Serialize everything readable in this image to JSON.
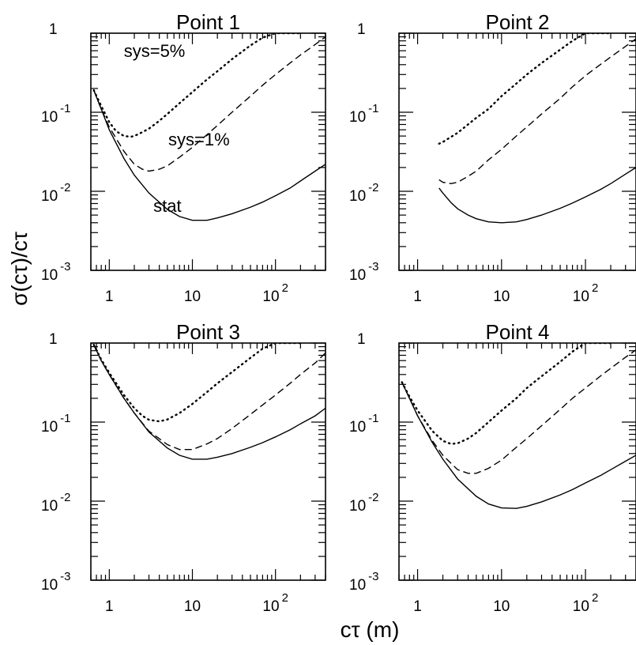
{
  "figure": {
    "ylabel": "σ(cτ)/cτ",
    "xlabel": "cτ (m)"
  },
  "axis_ticks": {
    "x_major": [
      {
        "value": 1,
        "base": "1",
        "exp": ""
      },
      {
        "value": 10,
        "base": "10",
        "exp": ""
      },
      {
        "value": 100,
        "base": "10",
        "exp": "2"
      }
    ],
    "y_major": [
      {
        "value": 1,
        "base": "1",
        "exp": ""
      },
      {
        "value": 0.1,
        "base": "10",
        "exp": "-1"
      },
      {
        "value": 0.01,
        "base": "10",
        "exp": "-2"
      },
      {
        "value": 0.001,
        "base": "10",
        "exp": "-3"
      }
    ]
  },
  "chart_data": [
    {
      "type": "line",
      "title": "Point 1",
      "xscale": "log",
      "yscale": "log",
      "xlim": [
        0.6,
        400
      ],
      "ylim": [
        0.001,
        1
      ],
      "grid": false,
      "annotations": [
        {
          "text": "sys=5%",
          "x": 3.5,
          "y": 0.5
        },
        {
          "text": "sys=1%",
          "x": 12,
          "y": 0.038
        },
        {
          "text": "stat",
          "x": 5,
          "y": 0.0055
        }
      ],
      "series": [
        {
          "style": "solid",
          "x": [
            0.65,
            0.8,
            1,
            1.5,
            2,
            3,
            5,
            7,
            10,
            15,
            20,
            30,
            50,
            70,
            100,
            150,
            200,
            300,
            400
          ],
          "y": [
            0.19,
            0.11,
            0.06,
            0.026,
            0.016,
            0.0095,
            0.0059,
            0.0048,
            0.0043,
            0.0043,
            0.0046,
            0.0052,
            0.0063,
            0.0073,
            0.0088,
            0.011,
            0.0135,
            0.018,
            0.022
          ]
        },
        {
          "style": "dashed",
          "x": [
            0.65,
            0.8,
            1,
            1.5,
            2,
            2.5,
            3,
            4,
            5,
            7,
            10,
            15,
            20,
            30,
            50,
            70,
            100,
            150,
            200,
            300,
            400
          ],
          "y": [
            0.19,
            0.11,
            0.065,
            0.032,
            0.022,
            0.019,
            0.018,
            0.019,
            0.021,
            0.027,
            0.036,
            0.052,
            0.068,
            0.1,
            0.16,
            0.22,
            0.3,
            0.42,
            0.53,
            0.72,
            0.9
          ]
        },
        {
          "style": "dotted",
          "x": [
            0.65,
            0.8,
            1,
            1.2,
            1.5,
            1.8,
            2,
            2.5,
            3,
            4,
            5,
            7,
            10,
            15,
            20,
            30,
            50,
            70,
            100,
            140,
            200
          ],
          "y": [
            0.19,
            0.12,
            0.075,
            0.058,
            0.05,
            0.049,
            0.05,
            0.056,
            0.062,
            0.078,
            0.095,
            0.13,
            0.18,
            0.26,
            0.33,
            0.47,
            0.7,
            0.88,
            1.0,
            1.0,
            1.0
          ]
        }
      ]
    },
    {
      "type": "line",
      "title": "Point 2",
      "xscale": "log",
      "yscale": "log",
      "xlim": [
        0.6,
        400
      ],
      "ylim": [
        0.001,
        1
      ],
      "grid": false,
      "series": [
        {
          "style": "solid",
          "x": [
            1.8,
            2,
            2.5,
            3,
            4,
            5,
            7,
            10,
            15,
            20,
            30,
            50,
            70,
            100,
            150,
            200,
            300,
            400
          ],
          "y": [
            0.011,
            0.0095,
            0.0072,
            0.006,
            0.005,
            0.0045,
            0.0041,
            0.004,
            0.0041,
            0.0044,
            0.005,
            0.0061,
            0.0071,
            0.0085,
            0.0105,
            0.0125,
            0.0165,
            0.02
          ]
        },
        {
          "style": "dashed",
          "x": [
            1.8,
            2,
            2.5,
            3,
            4,
            5,
            7,
            10,
            15,
            20,
            30,
            50,
            70,
            100,
            150,
            200,
            300,
            400
          ],
          "y": [
            0.014,
            0.013,
            0.0125,
            0.013,
            0.0155,
            0.018,
            0.025,
            0.034,
            0.05,
            0.065,
            0.095,
            0.15,
            0.21,
            0.29,
            0.4,
            0.5,
            0.68,
            0.85
          ]
        },
        {
          "style": "dotted",
          "x": [
            1.8,
            2,
            3,
            5,
            7,
            10,
            15,
            20,
            30,
            50,
            70,
            100,
            140,
            200
          ],
          "y": [
            0.04,
            0.042,
            0.055,
            0.085,
            0.11,
            0.16,
            0.23,
            0.3,
            0.42,
            0.62,
            0.8,
            1.0,
            1.0,
            1.0
          ]
        }
      ]
    },
    {
      "type": "line",
      "title": "Point 3",
      "xscale": "log",
      "yscale": "log",
      "xlim": [
        0.6,
        400
      ],
      "ylim": [
        0.001,
        1
      ],
      "grid": false,
      "series": [
        {
          "style": "solid",
          "x": [
            0.65,
            0.8,
            1,
            1.5,
            2,
            3,
            5,
            7,
            10,
            15,
            20,
            30,
            50,
            70,
            100,
            150,
            200,
            300,
            400
          ],
          "y": [
            0.95,
            0.6,
            0.4,
            0.2,
            0.13,
            0.075,
            0.047,
            0.038,
            0.034,
            0.034,
            0.036,
            0.04,
            0.048,
            0.055,
            0.065,
            0.08,
            0.095,
            0.12,
            0.15
          ]
        },
        {
          "style": "dashed",
          "x": [
            0.65,
            0.8,
            1,
            1.5,
            2,
            3,
            5,
            7,
            10,
            15,
            20,
            30,
            50,
            70,
            100,
            150,
            200,
            300,
            400
          ],
          "y": [
            0.95,
            0.6,
            0.4,
            0.2,
            0.13,
            0.077,
            0.052,
            0.045,
            0.045,
            0.053,
            0.062,
            0.083,
            0.125,
            0.165,
            0.22,
            0.31,
            0.4,
            0.56,
            0.75
          ]
        },
        {
          "style": "dotted",
          "x": [
            0.65,
            0.8,
            1,
            1.5,
            2,
            2.5,
            3,
            4,
            5,
            7,
            10,
            15,
            20,
            30,
            50,
            70,
            100,
            140,
            200
          ],
          "y": [
            0.95,
            0.62,
            0.42,
            0.22,
            0.15,
            0.12,
            0.107,
            0.102,
            0.108,
            0.13,
            0.17,
            0.24,
            0.31,
            0.43,
            0.65,
            0.85,
            1.0,
            1.0,
            1.0
          ]
        }
      ]
    },
    {
      "type": "line",
      "title": "Point 4",
      "xscale": "log",
      "yscale": "log",
      "xlim": [
        0.6,
        400
      ],
      "ylim": [
        0.001,
        1
      ],
      "grid": false,
      "series": [
        {
          "style": "solid",
          "x": [
            0.65,
            0.8,
            1,
            1.5,
            2,
            3,
            5,
            7,
            10,
            15,
            20,
            30,
            50,
            70,
            100,
            150,
            200,
            300,
            400
          ],
          "y": [
            0.32,
            0.2,
            0.12,
            0.055,
            0.034,
            0.019,
            0.0115,
            0.0092,
            0.0082,
            0.0081,
            0.0086,
            0.0098,
            0.012,
            0.014,
            0.017,
            0.021,
            0.025,
            0.032,
            0.038
          ]
        },
        {
          "style": "dashed",
          "x": [
            0.65,
            0.8,
            1,
            1.5,
            2,
            3,
            4,
            5,
            7,
            10,
            15,
            20,
            30,
            50,
            70,
            100,
            150,
            200,
            300,
            400
          ],
          "y": [
            0.32,
            0.2,
            0.12,
            0.058,
            0.038,
            0.025,
            0.0225,
            0.0225,
            0.026,
            0.033,
            0.048,
            0.062,
            0.09,
            0.145,
            0.2,
            0.27,
            0.38,
            0.48,
            0.66,
            0.82
          ]
        },
        {
          "style": "dotted",
          "x": [
            0.65,
            0.8,
            1,
            1.5,
            2,
            2.5,
            3,
            4,
            5,
            7,
            10,
            15,
            20,
            30,
            50,
            70,
            100,
            140,
            200
          ],
          "y": [
            0.32,
            0.21,
            0.14,
            0.077,
            0.058,
            0.053,
            0.054,
            0.062,
            0.073,
            0.1,
            0.14,
            0.2,
            0.27,
            0.38,
            0.58,
            0.78,
            1.0,
            1.0,
            1.0
          ]
        }
      ]
    }
  ]
}
